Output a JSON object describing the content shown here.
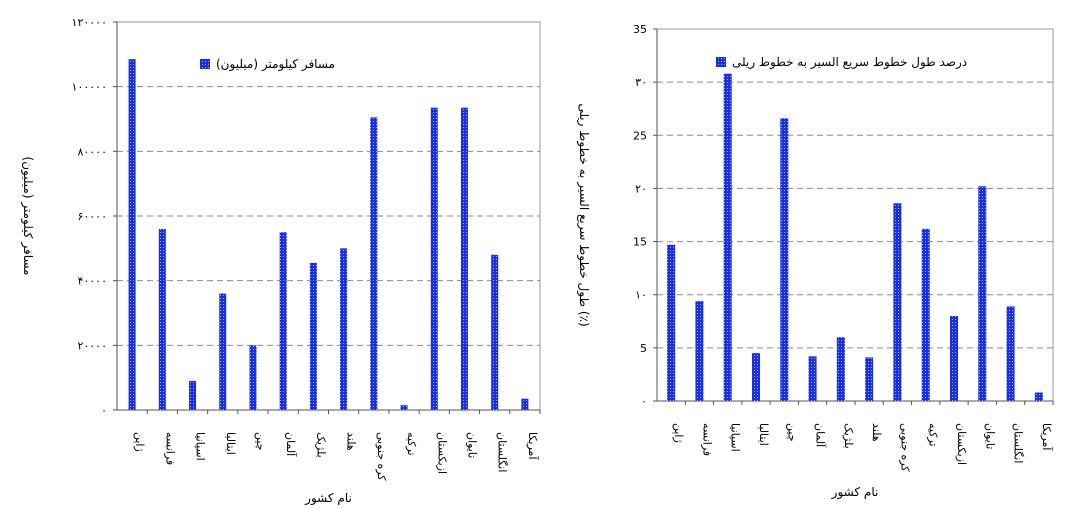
{
  "colors": {
    "bar": "#1a2ee6",
    "bar_dot": "#9fb4ff",
    "grid": "#8c8c8c",
    "axis": "#555555"
  },
  "chart_data": [
    {
      "type": "bar",
      "categories": [
        "ژاپن",
        "فرانسه",
        "اسپانیا",
        "ایتالیا",
        "چین",
        "آلمان",
        "بلژیک",
        "هلند",
        "کره جنوبی",
        "ترکیه",
        "ازبکستان",
        "تایوان",
        "انگلستان",
        "آمریکا"
      ],
      "series": [
        {
          "name": "مسافر کیلومتر (میلیون)",
          "values": [
            108500,
            56000,
            9000,
            36000,
            20000,
            55000,
            45500,
            50000,
            90500,
            1500,
            93500,
            93500,
            48000,
            3500
          ]
        }
      ],
      "ylim": [
        0,
        120000
      ],
      "yticks": [
        "۰",
        "۲۰۰۰۰",
        "۴۰۰۰۰",
        "۶۰۰۰۰",
        "۸۰۰۰۰",
        "۱۰۰۰۰۰",
        "۱۲۰۰۰۰"
      ],
      "xlabel": "نام کشور",
      "ylabel": "مسافر کیلومتر (میلیون)",
      "grid": true,
      "legend_position": "top-center"
    },
    {
      "type": "bar",
      "categories": [
        "ژاپن",
        "فرانسه",
        "اسپانیا",
        "ایتالیا",
        "چین",
        "آلمان",
        "بلژیک",
        "هلند",
        "کره جنوبی",
        "ترکیه",
        "ازبکستان",
        "تایوان",
        "انگلستان",
        "آمریکا"
      ],
      "series": [
        {
          "name": "درصد طول خطوط سریع السیر به خطوط ریلی",
          "values": [
            14.7,
            9.4,
            30.8,
            4.5,
            26.6,
            4.2,
            6,
            4.1,
            18.6,
            16.2,
            8,
            20.2,
            8.9,
            0.8
          ]
        }
      ],
      "ylim": [
        0,
        35
      ],
      "yticks": [
        "۰",
        "5",
        "۱۰",
        "15",
        "۲۰",
        "25",
        "۳۰",
        "35"
      ],
      "xlabel": "نام کشور",
      "ylabel": "طول خطوط سریع السیر به خطوط ریلی (٪)",
      "grid": true,
      "legend_position": "top-right"
    }
  ]
}
